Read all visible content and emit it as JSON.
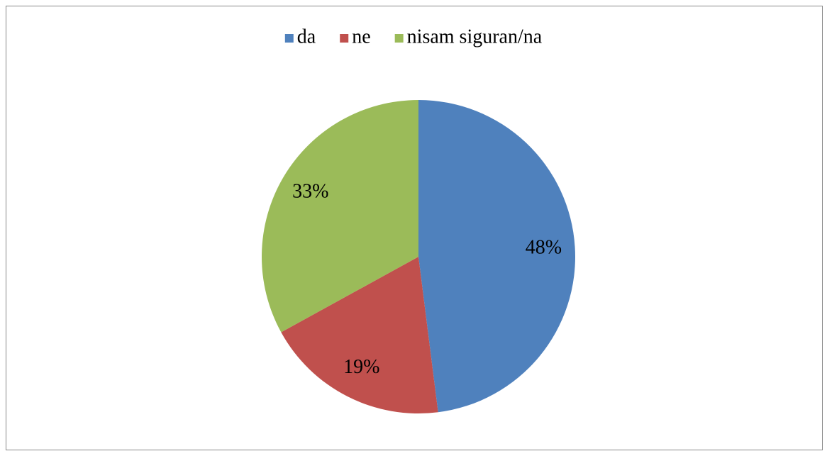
{
  "chart_data": {
    "type": "pie",
    "categories": [
      "da",
      "ne",
      "nisam siguran/na"
    ],
    "values": [
      48,
      19,
      33
    ],
    "value_labels": [
      "48%",
      "19%",
      "33%"
    ],
    "colors": [
      "#4f81bd",
      "#c0504d",
      "#9bbb59"
    ],
    "legend": "top"
  }
}
